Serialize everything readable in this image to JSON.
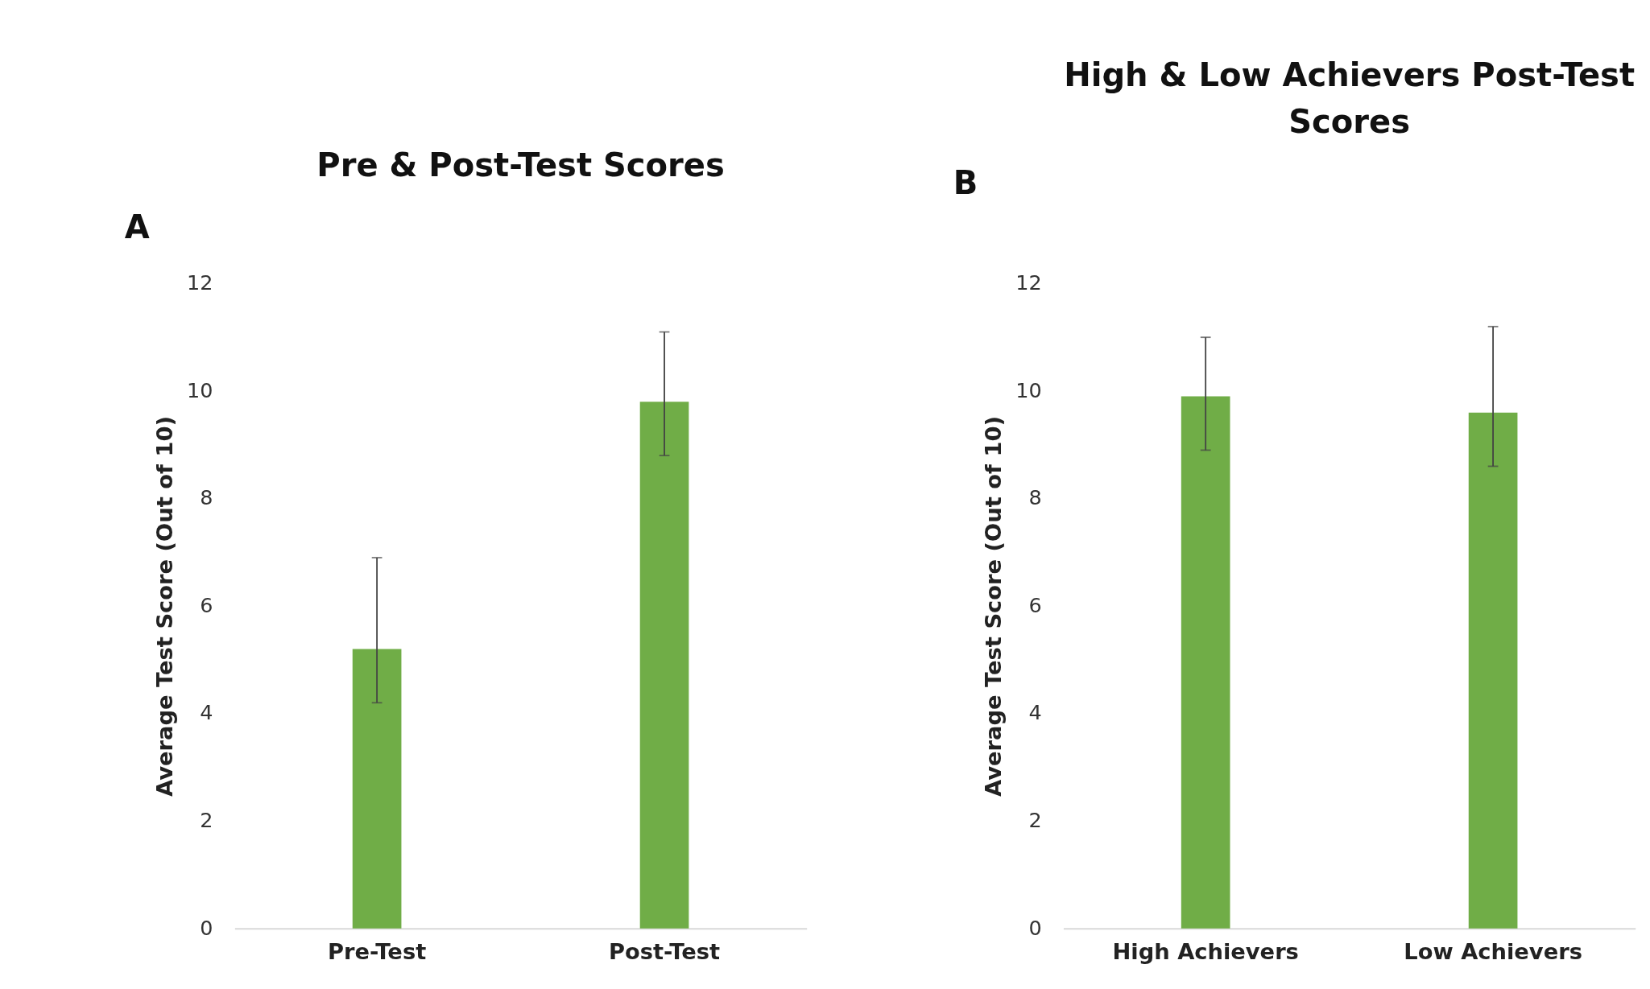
{
  "chart_data": [
    {
      "type": "bar",
      "title": "Pre & Post-Test Scores",
      "annotations": [
        "A"
      ],
      "ylabel": "Average Test Score (Out of 10)",
      "categories": [
        "Pre-Test",
        "Post-Test"
      ],
      "series": [
        {
          "color": "#70ad47",
          "values": [
            5.2,
            9.8
          ],
          "errors": [
            [
              4.2,
              6.9
            ],
            [
              8.8,
              11.1
            ]
          ]
        }
      ],
      "ylim": [
        0,
        12
      ],
      "yticks": [
        0,
        2,
        4,
        6,
        8,
        10,
        12
      ],
      "grid": false
    },
    {
      "type": "bar",
      "title": "High & Low Achievers Post-Test Scores",
      "annotations": [
        "B"
      ],
      "ylabel": "Average Test Score (Out of 10)",
      "categories": [
        "High Achievers",
        "Low Achievers"
      ],
      "series": [
        {
          "color": "#70ad47",
          "values": [
            9.9,
            9.6
          ],
          "errors": [
            [
              8.9,
              11.0
            ],
            [
              8.6,
              11.2
            ]
          ]
        }
      ],
      "ylim": [
        0,
        12
      ],
      "yticks": [
        0,
        2,
        4,
        6,
        8,
        10,
        12
      ],
      "grid": false
    }
  ]
}
